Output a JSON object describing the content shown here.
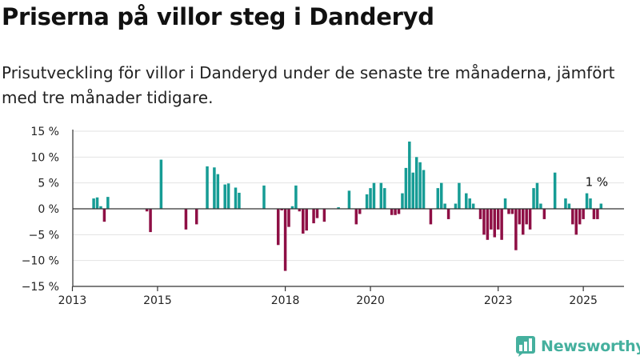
{
  "title": "Priserna på villor steg i Danderyd",
  "subtitle": "Prisutveckling för villor i Danderyd under de senaste tre månaderna, jämfört med tre månader tidigare.",
  "brand": {
    "name": "Newsworthy",
    "logo_icon": "bar-chart-logo-icon"
  },
  "colors": {
    "positive": "#169c95",
    "negative": "#8e0f45",
    "brand": "#45b09e",
    "grid": "#e2e2e2",
    "axis": "#333333"
  },
  "chart_data": {
    "type": "bar",
    "x_unit": "month",
    "ylim": [
      -15,
      15
    ],
    "y_ticks": [
      15,
      10,
      5,
      0,
      -5,
      -10,
      -15
    ],
    "y_tick_labels": [
      "15 %",
      "10 %",
      "5 %",
      "0 %",
      "−5 %",
      "−10 %",
      "−15 %"
    ],
    "x_tick_labels": [
      "2013",
      "2015",
      "2018",
      "2020",
      "2023",
      "2025"
    ],
    "x_tick_dates": [
      "2013-01",
      "2015-01",
      "2018-01",
      "2020-01",
      "2023-01",
      "2025-01"
    ],
    "x_range": [
      "2013-01",
      "2025-12"
    ],
    "grid": true,
    "annotations": [
      {
        "date": "2025-02",
        "value": 1,
        "label": "1 %"
      }
    ],
    "bars": [
      [
        "2013-07",
        2.0
      ],
      [
        "2013-08",
        2.2
      ],
      [
        "2013-09",
        0.5
      ],
      [
        "2013-10",
        -2.5
      ],
      [
        "2013-11",
        2.3
      ],
      [
        "2014-10",
        -0.5
      ],
      [
        "2014-11",
        -4.5
      ],
      [
        "2015-02",
        9.5
      ],
      [
        "2015-09",
        -4.0
      ],
      [
        "2015-12",
        -3.0
      ],
      [
        "2016-03",
        8.2
      ],
      [
        "2016-05",
        8.0
      ],
      [
        "2016-06",
        6.7
      ],
      [
        "2016-08",
        4.7
      ],
      [
        "2016-09",
        4.9
      ],
      [
        "2016-11",
        4.1
      ],
      [
        "2016-12",
        3.1
      ],
      [
        "2017-07",
        4.5
      ],
      [
        "2017-11",
        -7.0
      ],
      [
        "2017-12",
        -0.3
      ],
      [
        "2018-01",
        -12.0
      ],
      [
        "2018-02",
        -3.5
      ],
      [
        "2018-03",
        0.5
      ],
      [
        "2018-04",
        4.5
      ],
      [
        "2018-05",
        -0.5
      ],
      [
        "2018-06",
        -4.8
      ],
      [
        "2018-07",
        -4.2
      ],
      [
        "2018-09",
        -2.8
      ],
      [
        "2018-10",
        -1.8
      ],
      [
        "2018-12",
        -2.5
      ],
      [
        "2019-04",
        0.3
      ],
      [
        "2019-07",
        3.5
      ],
      [
        "2019-09",
        -3.0
      ],
      [
        "2019-10",
        -1.0
      ],
      [
        "2019-12",
        2.8
      ],
      [
        "2020-01",
        4.0
      ],
      [
        "2020-02",
        5.0
      ],
      [
        "2020-04",
        5.0
      ],
      [
        "2020-05",
        4.0
      ],
      [
        "2020-07",
        -1.2
      ],
      [
        "2020-08",
        -1.2
      ],
      [
        "2020-09",
        -1.0
      ],
      [
        "2020-10",
        3.0
      ],
      [
        "2020-11",
        7.9
      ],
      [
        "2020-12",
        13.0
      ],
      [
        "2021-01",
        7.0
      ],
      [
        "2021-02",
        10.0
      ],
      [
        "2021-03",
        9.0
      ],
      [
        "2021-04",
        7.5
      ],
      [
        "2021-06",
        -3.0
      ],
      [
        "2021-08",
        4.0
      ],
      [
        "2021-09",
        5.0
      ],
      [
        "2021-10",
        1.0
      ],
      [
        "2021-11",
        -2.0
      ],
      [
        "2022-01",
        1.0
      ],
      [
        "2022-02",
        5.0
      ],
      [
        "2022-04",
        3.0
      ],
      [
        "2022-05",
        2.0
      ],
      [
        "2022-06",
        1.0
      ],
      [
        "2022-08",
        -2.0
      ],
      [
        "2022-09",
        -5.0
      ],
      [
        "2022-10",
        -6.0
      ],
      [
        "2022-11",
        -4.0
      ],
      [
        "2022-12",
        -5.5
      ],
      [
        "2023-01",
        -4.0
      ],
      [
        "2023-02",
        -6.0
      ],
      [
        "2023-03",
        2.0
      ],
      [
        "2023-04",
        -1.0
      ],
      [
        "2023-05",
        -1.0
      ],
      [
        "2023-06",
        -8.0
      ],
      [
        "2023-07",
        -3.0
      ],
      [
        "2023-08",
        -5.0
      ],
      [
        "2023-09",
        -3.0
      ],
      [
        "2023-10",
        -4.0
      ],
      [
        "2023-11",
        4.0
      ],
      [
        "2023-12",
        5.0
      ],
      [
        "2024-01",
        1.0
      ],
      [
        "2024-02",
        -2.0
      ],
      [
        "2024-05",
        7.0
      ],
      [
        "2024-08",
        2.0
      ],
      [
        "2024-09",
        1.0
      ],
      [
        "2024-10",
        -3.0
      ],
      [
        "2024-11",
        -5.0
      ],
      [
        "2024-12",
        -3.0
      ],
      [
        "2025-01",
        -2.0
      ],
      [
        "2025-02",
        3.0
      ],
      [
        "2025-03",
        2.0
      ],
      [
        "2025-04",
        -2.0
      ],
      [
        "2025-05",
        -2.0
      ],
      [
        "2025-06",
        1.0
      ]
    ]
  }
}
